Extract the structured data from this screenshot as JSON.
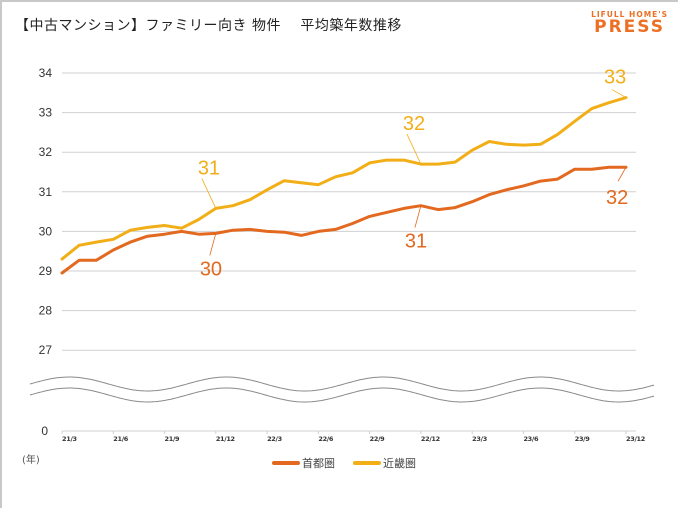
{
  "title": "【中古マンション】ファミリー向き 物件　 平均築年数推移",
  "logo": {
    "top": "LIFULL HOME'S",
    "bottom": "PRESS"
  },
  "colors": {
    "shutoken": "#e2691f",
    "kinki": "#f2ae17",
    "grid": "#d0d0d0",
    "break": "#8a8a8a",
    "brand": "#ec6f24"
  },
  "unit_label": "(年)",
  "chart_data": {
    "type": "line",
    "title": "【中古マンション】ファミリー向き 物件 平均築年数推移",
    "xlabel": "",
    "ylabel": "(年)",
    "ylim": [
      27,
      34
    ],
    "y_axis_break": true,
    "y_ticks": [
      "0",
      "27",
      "28",
      "29",
      "30",
      "31",
      "32",
      "33",
      "34"
    ],
    "x_ticks": [
      "21/3",
      "21/6",
      "21/9",
      "21/12",
      "22/3",
      "22/6",
      "22/9",
      "22/12",
      "23/3",
      "23/6",
      "23/9",
      "23/12"
    ],
    "x": [
      "21/3",
      "21/4",
      "21/5",
      "21/6",
      "21/7",
      "21/8",
      "21/9",
      "21/10",
      "21/11",
      "21/12",
      "22/1",
      "22/2",
      "22/3",
      "22/4",
      "22/5",
      "22/6",
      "22/7",
      "22/8",
      "22/9",
      "22/10",
      "22/11",
      "22/12",
      "23/1",
      "23/2",
      "23/3",
      "23/4",
      "23/5",
      "23/6",
      "23/7",
      "23/8",
      "23/9",
      "23/10",
      "23/11",
      "23/12"
    ],
    "grid": true,
    "legend": "bottom-center",
    "series": [
      {
        "name": "首都圏",
        "color": "#e2691f",
        "values": [
          28.95,
          29.27,
          29.27,
          29.53,
          29.73,
          29.88,
          29.93,
          30.0,
          29.93,
          29.95,
          30.03,
          30.05,
          30.0,
          29.98,
          29.9,
          30.0,
          30.05,
          30.2,
          30.38,
          30.48,
          30.58,
          30.65,
          30.55,
          30.6,
          30.75,
          30.93,
          31.05,
          31.15,
          31.27,
          31.32,
          31.57,
          31.57,
          31.62,
          31.62
        ]
      },
      {
        "name": "近畿圏",
        "color": "#f2ae17",
        "values": [
          29.3,
          29.65,
          29.73,
          29.8,
          30.03,
          30.1,
          30.15,
          30.08,
          30.3,
          30.58,
          30.65,
          30.8,
          31.05,
          31.28,
          31.23,
          31.18,
          31.38,
          31.48,
          31.73,
          31.8,
          31.8,
          31.7,
          31.7,
          31.75,
          32.05,
          32.27,
          32.2,
          32.18,
          32.2,
          32.45,
          32.78,
          33.1,
          33.25,
          33.38
        ]
      }
    ],
    "annotations": [
      {
        "series": "近畿圏",
        "at": "21/12",
        "label": "31"
      },
      {
        "series": "首都圏",
        "at": "21/12",
        "label": "30"
      },
      {
        "series": "近畿圏",
        "at": "22/12",
        "label": "32"
      },
      {
        "series": "首都圏",
        "at": "22/12",
        "label": "31"
      },
      {
        "series": "近畿圏",
        "at": "23/12",
        "label": "33"
      },
      {
        "series": "首都圏",
        "at": "23/12",
        "label": "32"
      }
    ]
  }
}
